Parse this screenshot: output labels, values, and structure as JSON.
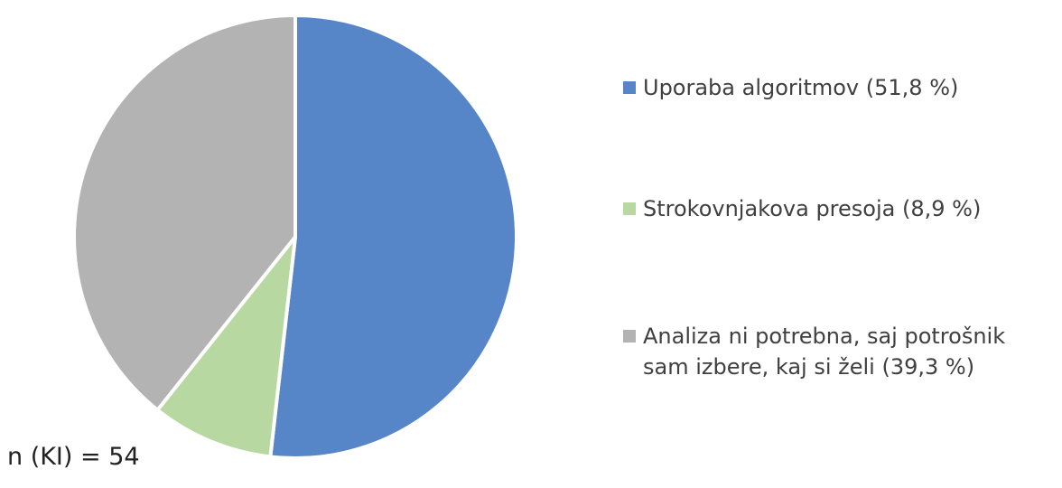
{
  "chart_data": {
    "type": "pie",
    "categories": [
      "Uporaba algoritmov (51,8 %)",
      "Strokovnjakova presoja (8,9 %)",
      "Analiza ni potrebna, saj potrošnik sam izbere, kaj si želi (39,3 %)"
    ],
    "values": [
      51.8,
      8.9,
      39.3
    ],
    "colors": [
      "#5686c8",
      "#b7d8a1",
      "#b3b3b3"
    ],
    "annotation": "n (KI) = 54",
    "legend": "right"
  }
}
